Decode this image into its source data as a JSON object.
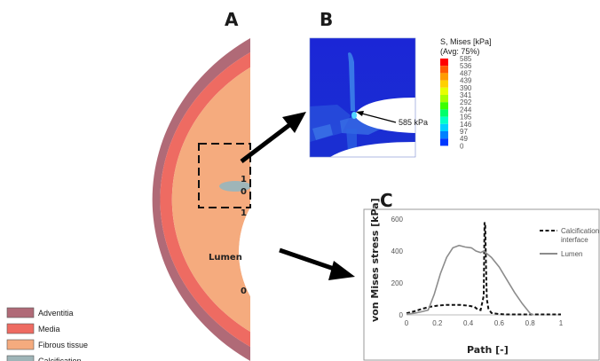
{
  "panels": {
    "a": "A",
    "b": "B",
    "c": "C"
  },
  "lumen_label": "Lumen",
  "path_marks": {
    "one_a": "1",
    "zero_a": "0",
    "one_b": "1",
    "zero_b": "0"
  },
  "legend": [
    {
      "label": "Adventitia",
      "color": "#b06a77"
    },
    {
      "label": "Media",
      "color": "#ee6b62"
    },
    {
      "label": "Fibrous tissue",
      "color": "#f5ab7e"
    },
    {
      "label": "Calcification",
      "color": "#9fb5b8"
    }
  ],
  "fea": {
    "title_line1": "S, Mises  [kPa]",
    "title_line2": "(Avg: 75%)",
    "scale": [
      "585",
      "536",
      "487",
      "439",
      "390",
      "341",
      "292",
      "244",
      "195",
      "146",
      "97",
      "49",
      "0"
    ],
    "scale_colors": [
      "#ff0000",
      "#ff5a00",
      "#ff9c00",
      "#ffd000",
      "#e6ff00",
      "#a6ff00",
      "#3cff00",
      "#00ff6a",
      "#00ffc8",
      "#00d0ff",
      "#0080ff",
      "#0038ff",
      "#0000e6"
    ],
    "annotation": "585 kPa"
  },
  "chart_data": {
    "type": "line",
    "xlabel": "Path [-]",
    "ylabel": "von Mises stress [kPa]",
    "xlim": [
      0,
      1
    ],
    "ylim": [
      0,
      600
    ],
    "xticks": [
      "0",
      "0.2",
      "0.4",
      "0.6",
      "0.8",
      "1"
    ],
    "yticks": [
      "0",
      "200",
      "400",
      "600"
    ],
    "legend_position": "top-right",
    "series": [
      {
        "name": "Calcification interface",
        "style": "dashed",
        "color": "#111111",
        "x": [
          0,
          0.05,
          0.1,
          0.15,
          0.2,
          0.25,
          0.3,
          0.35,
          0.4,
          0.44,
          0.46,
          0.48,
          0.5,
          0.505,
          0.51,
          0.515,
          0.52,
          0.53,
          0.55,
          0.6,
          0.65,
          0.7,
          0.75,
          0.8,
          0.85,
          0.9,
          0.95,
          1.0
        ],
        "y": [
          10,
          22,
          38,
          50,
          58,
          62,
          63,
          62,
          58,
          50,
          35,
          30,
          120,
          580,
          560,
          300,
          100,
          40,
          12,
          5,
          3,
          3,
          3,
          3,
          3,
          3,
          3,
          3
        ]
      },
      {
        "name": "Lumen",
        "style": "solid",
        "color": "#8c8c8c",
        "x": [
          0,
          0.05,
          0.1,
          0.14,
          0.18,
          0.22,
          0.26,
          0.3,
          0.34,
          0.38,
          0.42,
          0.45,
          0.48,
          0.5,
          0.55,
          0.6,
          0.65,
          0.7,
          0.75,
          0.8,
          0.82
        ],
        "y": [
          5,
          10,
          20,
          30,
          130,
          260,
          360,
          420,
          435,
          425,
          420,
          400,
          390,
          400,
          360,
          300,
          220,
          140,
          70,
          10,
          0
        ]
      }
    ]
  }
}
